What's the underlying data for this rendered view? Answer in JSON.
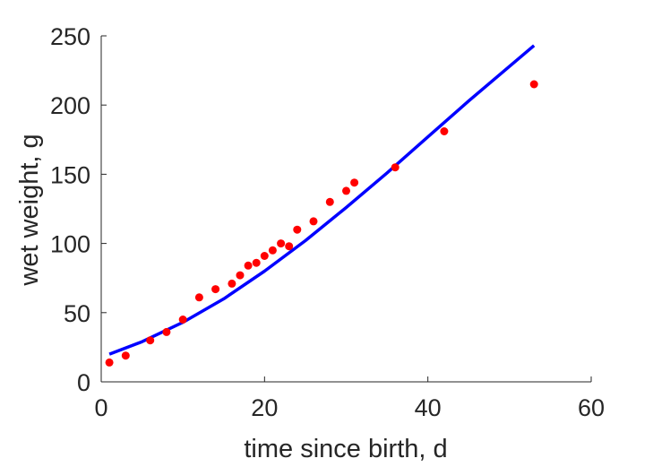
{
  "chart_data": {
    "type": "scatter",
    "xlabel": "time since birth, d",
    "ylabel": "wet weight, g",
    "xlim": [
      0,
      60
    ],
    "ylim": [
      0,
      250
    ],
    "xticks": [
      "0",
      "20",
      "40",
      "60"
    ],
    "yticks": [
      "0",
      "50",
      "100",
      "150",
      "200",
      "250"
    ],
    "grid": false,
    "series": [
      {
        "kind": "points",
        "color": "#ff0000",
        "x": [
          1,
          3,
          6,
          8,
          10,
          12,
          14,
          16,
          17,
          18,
          19,
          20,
          21,
          22,
          23,
          24,
          26,
          28,
          30,
          31,
          36,
          42,
          53
        ],
        "y": [
          14,
          19,
          30,
          36,
          45,
          61,
          67,
          71,
          77,
          84,
          86,
          91,
          95,
          100,
          98,
          110,
          116,
          130,
          138,
          144,
          155,
          181,
          215
        ]
      },
      {
        "kind": "line",
        "color": "#0000ff",
        "x": [
          1,
          5,
          10,
          15,
          20,
          25,
          30,
          35,
          40,
          45,
          53
        ],
        "y": [
          20,
          29,
          43,
          60,
          80,
          102,
          126,
          151,
          177,
          203,
          243
        ]
      }
    ]
  }
}
